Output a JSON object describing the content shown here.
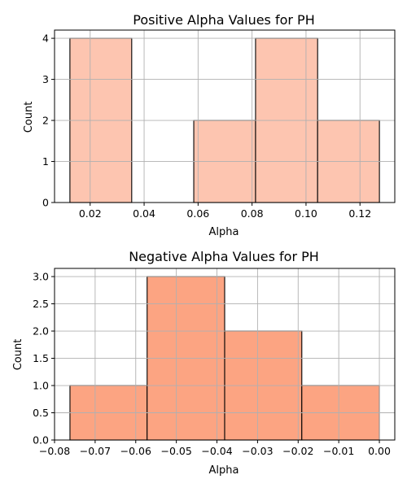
{
  "colors": {
    "positive_bar": "#fdc5b0",
    "negative_bar": "#fca482",
    "bar_edge": "#000000",
    "grid": "#b0b0b0"
  },
  "chart_data": [
    {
      "type": "bar",
      "title": "Positive Alpha Values for PH",
      "xlabel": "Alpha",
      "ylabel": "Count",
      "bins": [
        {
          "start": 0.0125,
          "end": 0.0354,
          "count": 4
        },
        {
          "start": 0.0354,
          "end": 0.0584,
          "count": 0
        },
        {
          "start": 0.0584,
          "end": 0.0813,
          "count": 2
        },
        {
          "start": 0.0813,
          "end": 0.1043,
          "count": 4
        },
        {
          "start": 0.1043,
          "end": 0.1272,
          "count": 2
        }
      ],
      "xlim": [
        0.0068,
        0.1329
      ],
      "ylim": [
        0,
        4.2
      ],
      "xticks": [
        0.02,
        0.04,
        0.06,
        0.08,
        0.1,
        0.12
      ],
      "xtick_labels": [
        "0.02",
        "0.04",
        "0.06",
        "0.08",
        "0.10",
        "0.12"
      ],
      "yticks": [
        0,
        1,
        2,
        3,
        4
      ],
      "ytick_labels": [
        "0",
        "1",
        "2",
        "3",
        "4"
      ],
      "grid": true
    },
    {
      "type": "bar",
      "title": "Negative Alpha Values for PH",
      "xlabel": "Alpha",
      "ylabel": "Count",
      "bins": [
        {
          "start": -0.0762,
          "end": -0.0572,
          "count": 1
        },
        {
          "start": -0.0572,
          "end": -0.0381,
          "count": 3
        },
        {
          "start": -0.0381,
          "end": -0.0191,
          "count": 2
        },
        {
          "start": -0.0191,
          "end": 0.0,
          "count": 1
        }
      ],
      "xlim": [
        -0.08,
        0.0038
      ],
      "ylim": [
        0,
        3.15
      ],
      "xticks": [
        -0.08,
        -0.07,
        -0.06,
        -0.05,
        -0.04,
        -0.03,
        -0.02,
        -0.01,
        0.0
      ],
      "xtick_labels": [
        "−0.08",
        "−0.07",
        "−0.06",
        "−0.05",
        "−0.04",
        "−0.03",
        "−0.02",
        "−0.01",
        "0.00"
      ],
      "yticks": [
        0,
        0.5,
        1.0,
        1.5,
        2.0,
        2.5,
        3.0
      ],
      "ytick_labels": [
        "0.0",
        "0.5",
        "1.0",
        "1.5",
        "2.0",
        "2.5",
        "3.0"
      ],
      "grid": true
    }
  ]
}
